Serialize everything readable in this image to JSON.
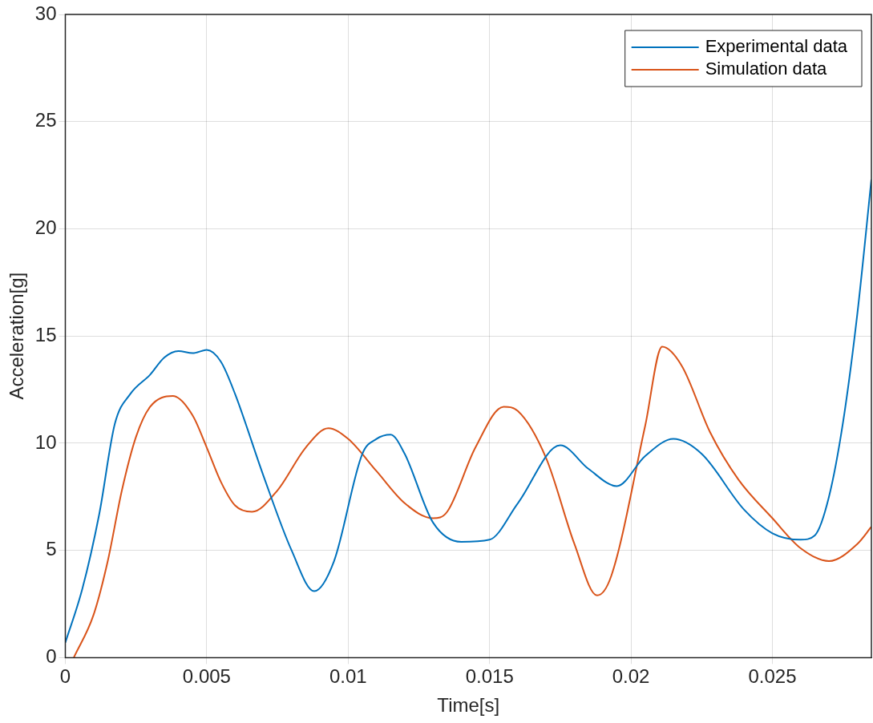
{
  "chart_data": {
    "type": "line",
    "xlabel": "Time[s]",
    "ylabel": "Acceleration[g]",
    "xlim": [
      0,
      0.0285
    ],
    "xticks": [
      0,
      0.005,
      0.01,
      0.015,
      0.02,
      0.025
    ],
    "ylim": [
      0,
      30
    ],
    "yticks": [
      0,
      5,
      10,
      15,
      20,
      25,
      30
    ],
    "grid": true,
    "legend": "top right",
    "marker": "none",
    "line_style": "solid",
    "series": [
      {
        "name": "Experimental data",
        "color": "#0072bd",
        "x": [
          0,
          0.0006,
          0.0012,
          0.00175,
          0.0023,
          0.003,
          0.0035,
          0.004,
          0.0045,
          0.005,
          0.0055,
          0.006,
          0.007,
          0.008,
          0.0088,
          0.0095,
          0.0105,
          0.011,
          0.0115,
          0.012,
          0.013,
          0.014,
          0.015,
          0.016,
          0.0175,
          0.0185,
          0.0195,
          0.0205,
          0.0215,
          0.0225,
          0.024,
          0.025,
          0.026,
          0.0265,
          0.027,
          0.0275,
          0.028,
          0.0285
        ],
        "values": [
          0.7,
          3.2,
          6.7,
          10.9,
          12.3,
          13.2,
          14.0,
          14.3,
          14.2,
          14.35,
          13.8,
          12.3,
          8.5,
          5.0,
          3.1,
          4.5,
          9.5,
          10.2,
          10.4,
          9.5,
          6.3,
          5.4,
          5.5,
          7.2,
          9.9,
          8.8,
          8.0,
          9.4,
          10.2,
          9.5,
          6.9,
          5.8,
          5.5,
          5.7,
          7.5,
          11,
          16,
          22.3
        ]
      },
      {
        "name": "Simulation data",
        "color": "#d95319",
        "x": [
          0.0003,
          0.001,
          0.0015,
          0.002,
          0.0025,
          0.003,
          0.0038,
          0.0045,
          0.005,
          0.0055,
          0.006,
          0.0066,
          0.0075,
          0.0085,
          0.0093,
          0.01,
          0.011,
          0.012,
          0.013,
          0.0135,
          0.0145,
          0.0155,
          0.016,
          0.017,
          0.018,
          0.0188,
          0.0193,
          0.0205,
          0.0211,
          0.0218,
          0.0228,
          0.0238,
          0.025,
          0.026,
          0.027,
          0.028,
          0.0285
        ],
        "values": [
          0,
          2.0,
          4.5,
          7.8,
          10.3,
          11.7,
          12.2,
          11.3,
          9.8,
          8.2,
          7.1,
          6.8,
          7.8,
          9.8,
          10.7,
          10.2,
          8.7,
          7.2,
          6.5,
          6.8,
          9.8,
          11.7,
          11.5,
          9.3,
          5.3,
          2.9,
          3.8,
          10.8,
          14.5,
          13.6,
          10.5,
          8.3,
          6.5,
          5.1,
          4.5,
          5.3,
          6.1
        ]
      }
    ]
  }
}
